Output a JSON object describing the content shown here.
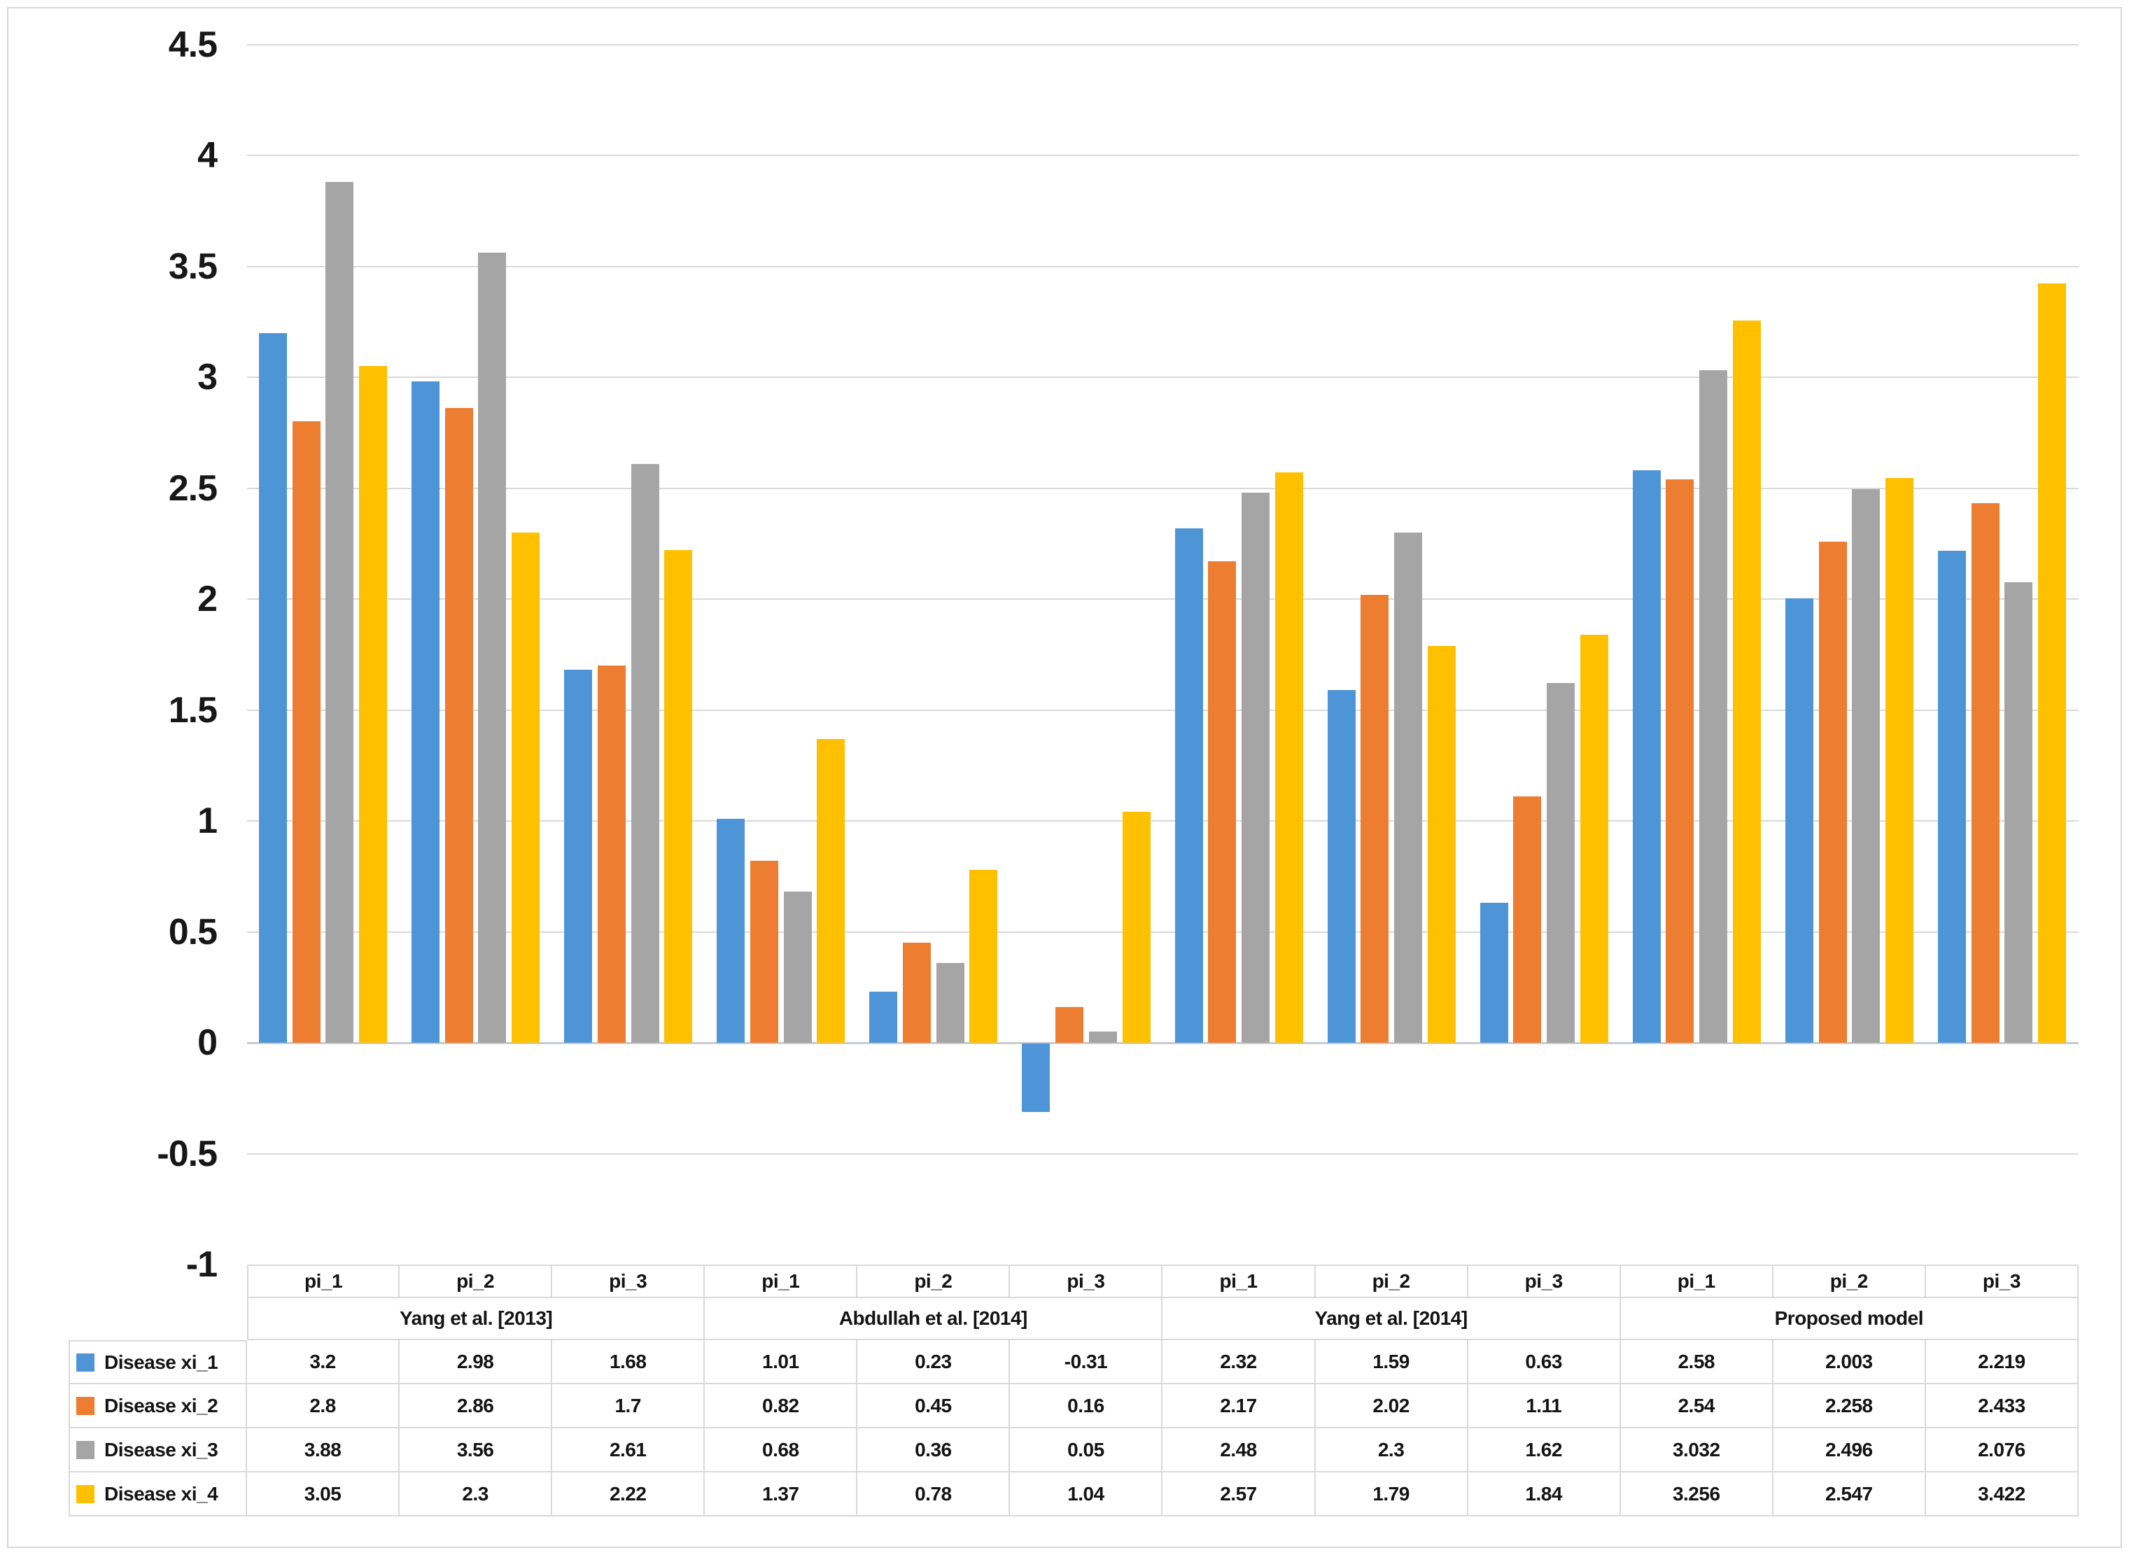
{
  "frame": {
    "background": "#FFFFFF",
    "border_color": "#D6D8DB"
  },
  "chart_data": {
    "type": "bar",
    "title": "",
    "xlabel": "",
    "ylabel": "",
    "y_axis": {
      "min": -1,
      "max": 4.5,
      "step": 0.5,
      "tick_labels": [
        "4.5",
        "4",
        "3.5",
        "3",
        "2.5",
        "2",
        "1.5",
        "1",
        "0.5",
        "0",
        "-0.5",
        "-1"
      ],
      "gridlines": true,
      "gridline_color": "#D9D9D9"
    },
    "x_axis": {
      "groups": [
        {
          "label": "Yang et al. [2013]",
          "categories": [
            "pi_1",
            "pi_2",
            "pi_3"
          ]
        },
        {
          "label": "Abdullah et al. [2014]",
          "categories": [
            "pi_1",
            "pi_2",
            "pi_3"
          ]
        },
        {
          "label": "Yang et al. [2014]",
          "categories": [
            "pi_1",
            "pi_2",
            "pi_3"
          ]
        },
        {
          "label": "Proposed model",
          "categories": [
            "pi_1",
            "pi_2",
            "pi_3"
          ]
        }
      ]
    },
    "series": [
      {
        "name": "Disease xi_1",
        "color": "#4E95D8",
        "values": [
          3.2,
          2.98,
          1.68,
          1.01,
          0.23,
          -0.31,
          2.32,
          1.59,
          0.63,
          2.58,
          2.003,
          2.219
        ]
      },
      {
        "name": "Disease xi_2",
        "color": "#ED7D31",
        "values": [
          2.8,
          2.86,
          1.7,
          0.82,
          0.45,
          0.16,
          2.17,
          2.02,
          1.11,
          2.54,
          2.258,
          2.433
        ]
      },
      {
        "name": "Disease xi_3",
        "color": "#A5A5A5",
        "values": [
          3.88,
          3.56,
          2.61,
          0.68,
          0.36,
          0.05,
          2.48,
          2.3,
          1.62,
          3.032,
          2.496,
          2.076
        ]
      },
      {
        "name": "Disease xi_4",
        "color": "#FFC000",
        "values": [
          3.05,
          2.3,
          2.22,
          1.37,
          0.78,
          1.04,
          2.57,
          1.79,
          1.84,
          3.256,
          2.547,
          3.422
        ]
      }
    ],
    "legend_position": "data-table-left-column"
  }
}
